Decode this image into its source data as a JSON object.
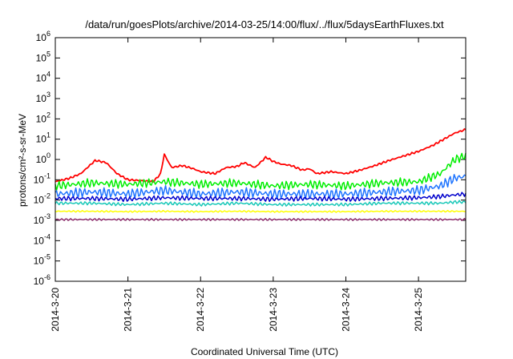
{
  "chart_data": {
    "type": "line",
    "title": "/data/run/goesPlots/archive/2014-03-25/14:00/flux/../flux/5daysEarthFluxes.txt",
    "xlabel": "Coordinated Universal Time (UTC)",
    "ylabel": "protons/cm²-s-sr-MeV",
    "yscale": "log",
    "ylim_exponents": [
      -6,
      6
    ],
    "xlim_days": [
      0,
      5.65
    ],
    "x_ticks": [
      "2014-3-20",
      "2014-3-21",
      "2014-3-22",
      "2014-3-23",
      "2014-3-24",
      "2014-3-25"
    ],
    "y_ticks": [
      "10^-6",
      "10^-5",
      "10^-4",
      "10^-3",
      "10^-2",
      "10^-1",
      "10^0",
      "10^1",
      "10^2",
      "10^3",
      "10^4",
      "10^5",
      "10^6"
    ],
    "grid": false,
    "legend": "none",
    "series": [
      {
        "color": "#ff0000",
        "x": [
          0.0,
          0.2,
          0.35,
          0.55,
          0.7,
          0.85,
          1.0,
          1.2,
          1.35,
          1.45,
          1.5,
          1.6,
          1.75,
          1.9,
          2.0,
          2.2,
          2.35,
          2.5,
          2.6,
          2.75,
          2.9,
          3.0,
          3.1,
          3.25,
          3.4,
          3.5,
          3.6,
          3.8,
          4.0,
          4.2,
          4.4,
          4.6,
          4.8,
          5.0,
          5.2,
          5.35,
          5.5,
          5.65
        ],
        "y": [
          0.08,
          0.12,
          0.2,
          0.9,
          0.7,
          0.2,
          0.1,
          0.09,
          0.08,
          0.2,
          1.8,
          0.4,
          0.5,
          0.35,
          0.25,
          0.2,
          0.4,
          0.45,
          0.7,
          0.4,
          1.3,
          0.8,
          0.6,
          0.5,
          0.3,
          0.35,
          0.2,
          0.25,
          0.2,
          0.3,
          0.5,
          0.9,
          1.5,
          2.5,
          5.0,
          10.0,
          20.0,
          30.0
        ]
      },
      {
        "color": "#00ee00",
        "x": [
          0.0,
          0.5,
          1.0,
          1.5,
          2.0,
          2.5,
          3.0,
          3.5,
          4.0,
          4.5,
          5.0,
          5.3,
          5.5,
          5.65
        ],
        "y": [
          0.05,
          0.07,
          0.06,
          0.08,
          0.06,
          0.07,
          0.05,
          0.06,
          0.05,
          0.07,
          0.08,
          0.2,
          1.0,
          1.5
        ]
      },
      {
        "color": "#1e74ff",
        "x": [
          0.0,
          0.5,
          1.0,
          1.5,
          2.0,
          2.5,
          3.0,
          3.5,
          4.0,
          4.5,
          5.0,
          5.3,
          5.5,
          5.65
        ],
        "y": [
          0.02,
          0.025,
          0.02,
          0.03,
          0.02,
          0.025,
          0.02,
          0.02,
          0.02,
          0.025,
          0.03,
          0.05,
          0.12,
          0.15
        ]
      },
      {
        "color": "#0000cc",
        "x": [
          0.0,
          0.5,
          1.0,
          1.5,
          2.0,
          2.5,
          3.0,
          3.5,
          4.0,
          4.5,
          5.0,
          5.3,
          5.5,
          5.65
        ],
        "y": [
          0.012,
          0.012,
          0.011,
          0.013,
          0.012,
          0.012,
          0.011,
          0.012,
          0.011,
          0.012,
          0.013,
          0.015,
          0.018,
          0.02
        ]
      },
      {
        "color": "#18c8b8",
        "x": [
          0.0,
          0.5,
          1.0,
          1.5,
          2.0,
          2.5,
          3.0,
          3.5,
          4.0,
          4.5,
          5.0,
          5.3,
          5.5,
          5.65
        ],
        "y": [
          0.007,
          0.007,
          0.006,
          0.007,
          0.006,
          0.007,
          0.006,
          0.006,
          0.006,
          0.007,
          0.007,
          0.007,
          0.008,
          0.008
        ]
      },
      {
        "color": "#ffff00",
        "x": [
          0.0,
          0.5,
          1.0,
          1.5,
          2.0,
          2.5,
          3.0,
          3.5,
          4.0,
          4.5,
          5.0,
          5.3,
          5.5,
          5.65
        ],
        "y": [
          0.0028,
          0.0028,
          0.0027,
          0.0028,
          0.0027,
          0.0028,
          0.0027,
          0.0027,
          0.0027,
          0.0028,
          0.0028,
          0.0028,
          0.0028,
          0.0028
        ]
      },
      {
        "color": "#8b2b6a",
        "x": [
          0.0,
          0.5,
          1.0,
          1.5,
          2.0,
          2.5,
          3.0,
          3.5,
          4.0,
          4.5,
          5.0,
          5.3,
          5.5,
          5.65
        ],
        "y": [
          0.0011,
          0.0011,
          0.0011,
          0.0011,
          0.0011,
          0.0011,
          0.0011,
          0.0011,
          0.0011,
          0.0011,
          0.0011,
          0.0011,
          0.0011,
          0.0011
        ]
      }
    ]
  }
}
